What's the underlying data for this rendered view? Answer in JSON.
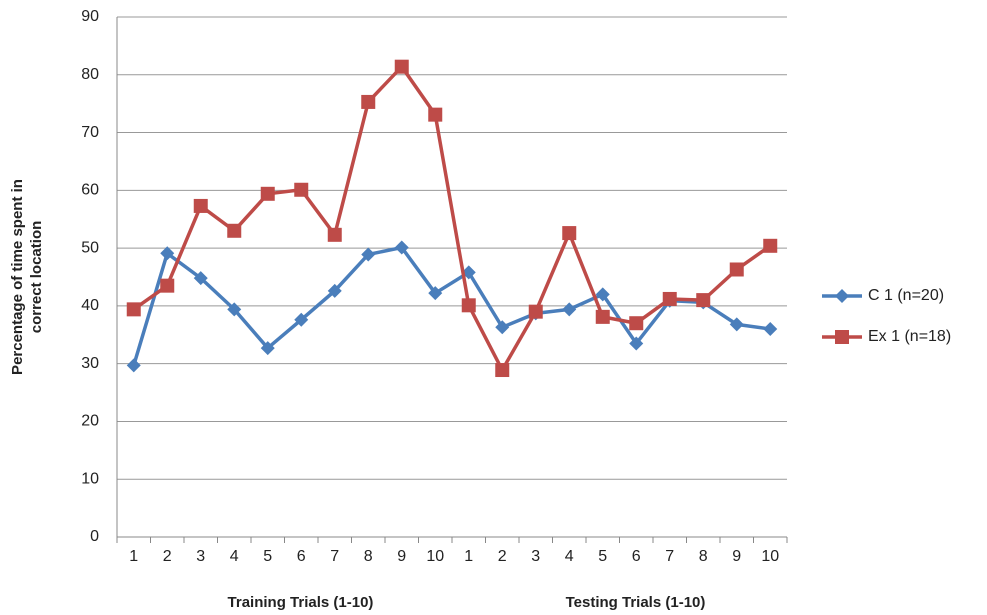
{
  "chart_data": {
    "type": "line",
    "categories": [
      "1",
      "2",
      "3",
      "4",
      "5",
      "6",
      "7",
      "8",
      "9",
      "10",
      "1",
      "2",
      "3",
      "4",
      "5",
      "6",
      "7",
      "8",
      "9",
      "10"
    ],
    "x_group_labels": [
      "Training Trials (1-10)",
      "Testing Trials (1-10)"
    ],
    "y_label": [
      "Percentage of time spent in",
      "correct location"
    ],
    "series": [
      {
        "name": "C 1 (n=20)",
        "color": "#4a7ebb",
        "marker": "diamond",
        "values": [
          29.7,
          49.1,
          44.8,
          39.4,
          32.7,
          37.6,
          42.6,
          48.9,
          50.1,
          42.2,
          45.8,
          36.3,
          38.7,
          39.4,
          42.0,
          33.5,
          40.9,
          40.6,
          36.8,
          36.0
        ]
      },
      {
        "name": "Ex 1 (n=18)",
        "color": "#be4b48",
        "marker": "square",
        "values": [
          39.4,
          43.5,
          57.3,
          53.0,
          59.4,
          60.1,
          52.3,
          75.3,
          81.4,
          73.1,
          40.1,
          28.9,
          39.0,
          52.6,
          38.1,
          37.0,
          41.2,
          41.0,
          46.3,
          50.4
        ]
      }
    ],
    "ylim": [
      0,
      90
    ],
    "yticks": [
      0,
      10,
      20,
      30,
      40,
      50,
      60,
      70,
      80,
      90
    ],
    "grid": true,
    "legend": "right"
  }
}
